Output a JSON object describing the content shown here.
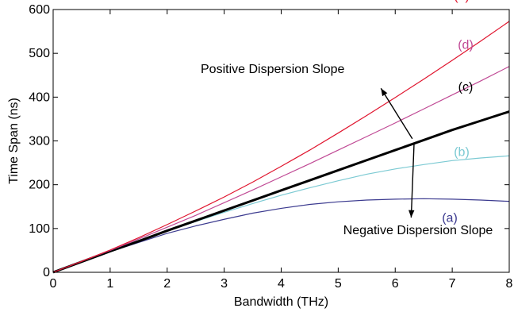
{
  "chart_data": {
    "type": "line",
    "title": "",
    "xlabel": "Bandwidth (THz)",
    "ylabel": "Time Span (ns)",
    "xlim": [
      0,
      8
    ],
    "ylim": [
      0,
      600
    ],
    "xticks": [
      0,
      1,
      2,
      3,
      4,
      5,
      6,
      7,
      8
    ],
    "yticks": [
      0,
      100,
      200,
      300,
      400,
      500,
      600
    ],
    "grid": false,
    "legend": "none",
    "x": [
      0,
      0.5,
      1,
      1.5,
      2,
      2.5,
      3,
      3.5,
      4,
      4.5,
      5,
      5.5,
      6,
      6.5,
      7,
      7.5,
      8
    ],
    "series": [
      {
        "name": "(a)",
        "color": "#3b3a8f",
        "bold": false,
        "values": [
          0,
          24,
          47,
          68,
          89,
          106,
          121,
          135,
          146,
          155,
          161,
          165,
          167,
          168,
          167,
          165,
          162
        ]
      },
      {
        "name": "(b)",
        "color": "#7ccad3",
        "bold": false,
        "values": [
          0,
          24,
          48,
          71,
          94,
          116,
          137,
          157,
          176,
          193,
          209,
          224,
          236,
          246,
          255,
          261,
          266
        ]
      },
      {
        "name": "(c)",
        "color": "#000000",
        "bold": true,
        "values": [
          0,
          24,
          48,
          71,
          95,
          118,
          141,
          164,
          187,
          210,
          233,
          256,
          279,
          302,
          325,
          346,
          367
        ]
      },
      {
        "name": "(d)",
        "color": "#c04a95",
        "bold": false,
        "values": [
          0,
          25,
          50,
          76,
          103,
          130,
          159,
          188,
          218,
          248,
          279,
          310,
          341,
          373,
          405,
          437,
          470
        ]
      },
      {
        "name": "(e)",
        "color": "#e0152e",
        "bold": false,
        "values": [
          0,
          25,
          51,
          79,
          109,
          140,
          172,
          206,
          242,
          279,
          318,
          358,
          399,
          441,
          484,
          528,
          573
        ]
      }
    ],
    "annotations": [
      {
        "text": "Positive Dispersion Slope",
        "x": 3.85,
        "y": 455
      },
      {
        "text": "Negative Dispersion Slope",
        "x": 6.4,
        "y": 87
      }
    ],
    "arrows": [
      {
        "from": [
          6.3,
          305
        ],
        "to": [
          5.75,
          420
        ]
      },
      {
        "from": [
          6.33,
          292
        ],
        "to": [
          6.28,
          125
        ]
      }
    ]
  }
}
